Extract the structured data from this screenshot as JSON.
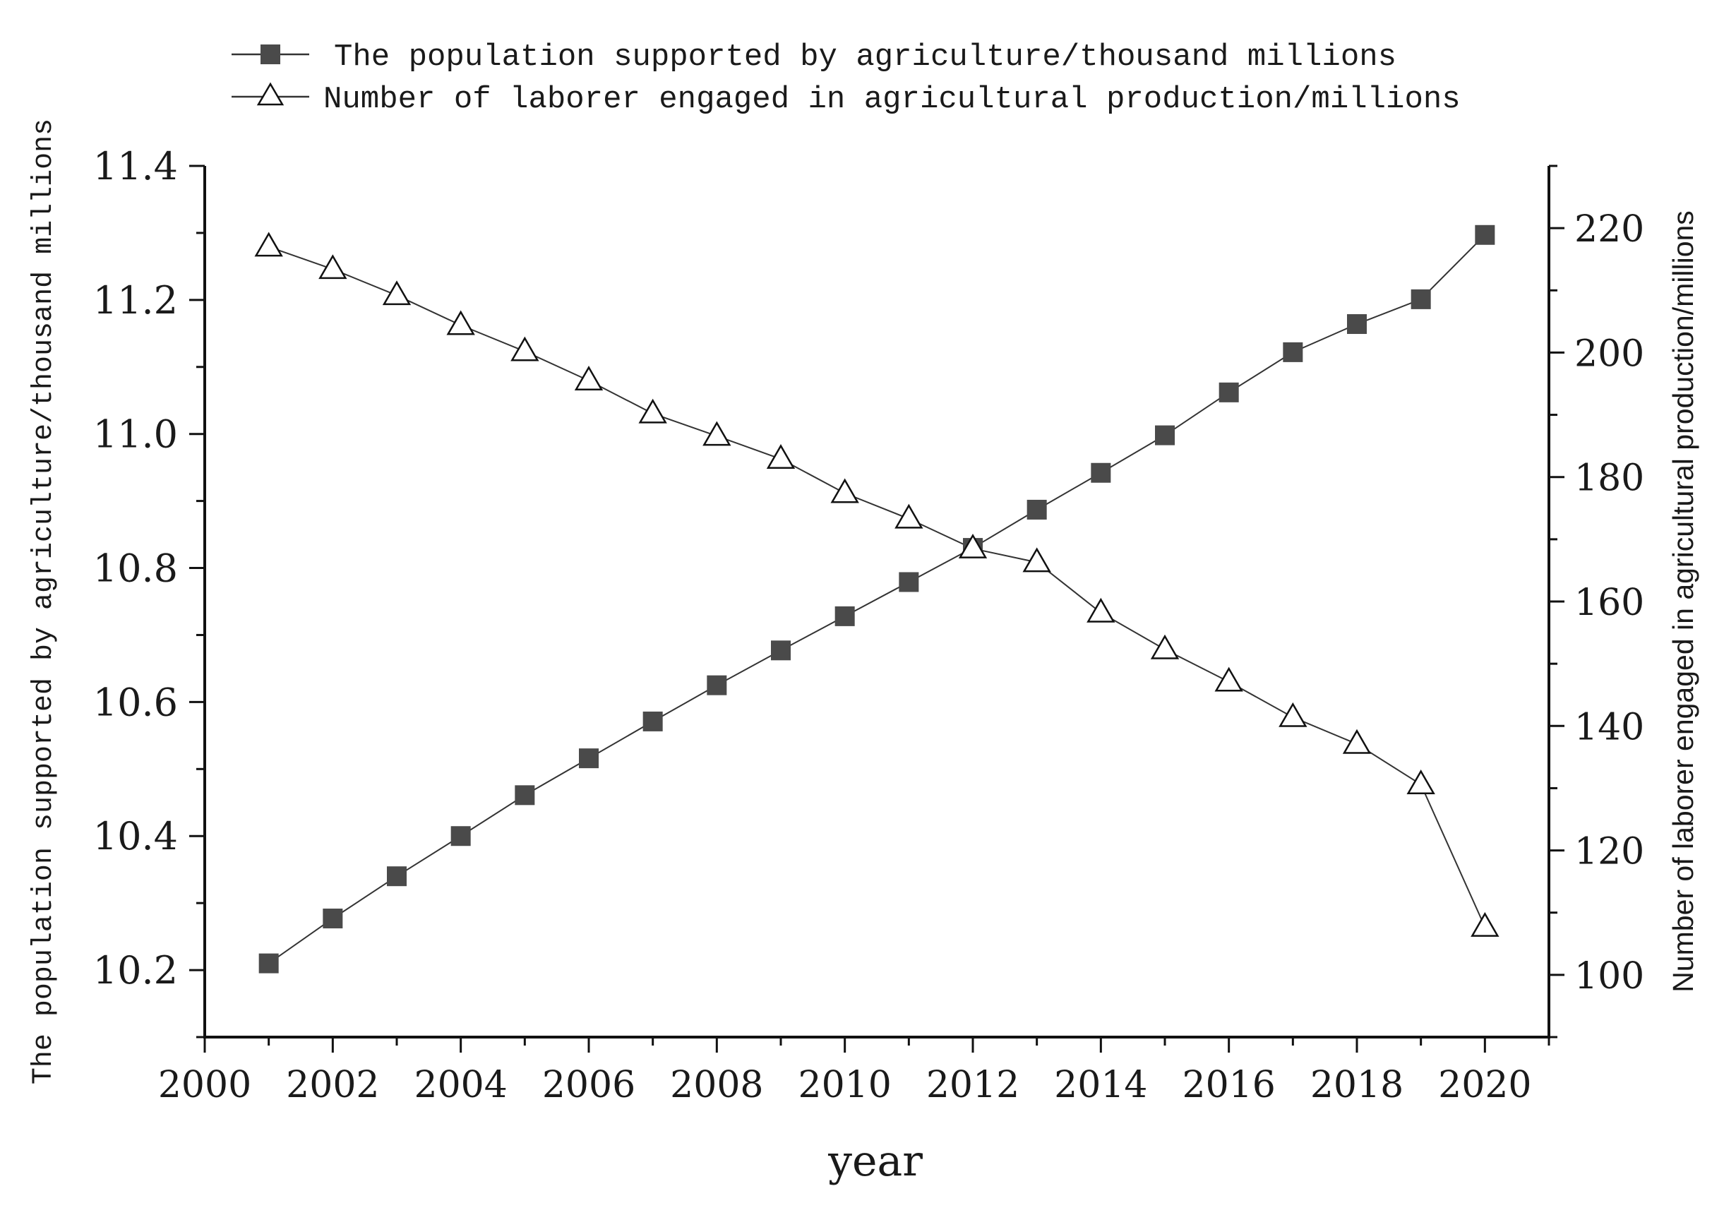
{
  "chart_data": {
    "type": "line",
    "title": "",
    "xlabel": "year",
    "ylabel_left": "The population supported by agriculture/thousand millions",
    "ylabel_right": "Number of laborer engaged in agricultural production/millions",
    "x": [
      2001,
      2002,
      2003,
      2004,
      2005,
      2006,
      2007,
      2008,
      2009,
      2010,
      2011,
      2012,
      2013,
      2014,
      2015,
      2016,
      2017,
      2018,
      2019,
      2020
    ],
    "xlim": [
      2000,
      2021
    ],
    "x_ticks": [
      "2000",
      "2002",
      "2004",
      "2006",
      "2008",
      "2010",
      "2012",
      "2014",
      "2016",
      "2018",
      "2020"
    ],
    "ylim_left": [
      10.1,
      11.4
    ],
    "y_ticks_left": [
      "10.2",
      "10.4",
      "10.6",
      "10.8",
      "11.0",
      "11.2",
      "11.4"
    ],
    "ylim_right": [
      90,
      230
    ],
    "y_ticks_right": [
      "100",
      "120",
      "140",
      "160",
      "180",
      "200",
      "220"
    ],
    "series": [
      {
        "name": "The population supported by agriculture/thousand millions",
        "axis": "left",
        "marker": "filled-square",
        "values": [
          10.21,
          10.277,
          10.34,
          10.4,
          10.461,
          10.516,
          10.571,
          10.625,
          10.677,
          10.728,
          10.779,
          10.83,
          10.887,
          10.942,
          10.998,
          11.062,
          11.122,
          11.164,
          11.201,
          11.297
        ]
      },
      {
        "name": "Number of laborer engaged in agricultural production/millions",
        "axis": "right",
        "marker": "open-triangle",
        "values": [
          217,
          213.4,
          209.2,
          204.4,
          200.2,
          195.5,
          190.2,
          186.6,
          182.9,
          177.4,
          173.3,
          168.5,
          166.3,
          158.2,
          152.3,
          147.1,
          141.4,
          137.1,
          130.6,
          107.7
        ]
      }
    ],
    "legend": {
      "position": "top-center",
      "entries": [
        "The population supported by agriculture/thousand millions",
        "Number of laborer engaged in agricultural production/millions"
      ]
    },
    "grid": false,
    "colors": {
      "square_fill": "#4a4a4a",
      "line": "#333333",
      "axis": "#111111"
    }
  }
}
